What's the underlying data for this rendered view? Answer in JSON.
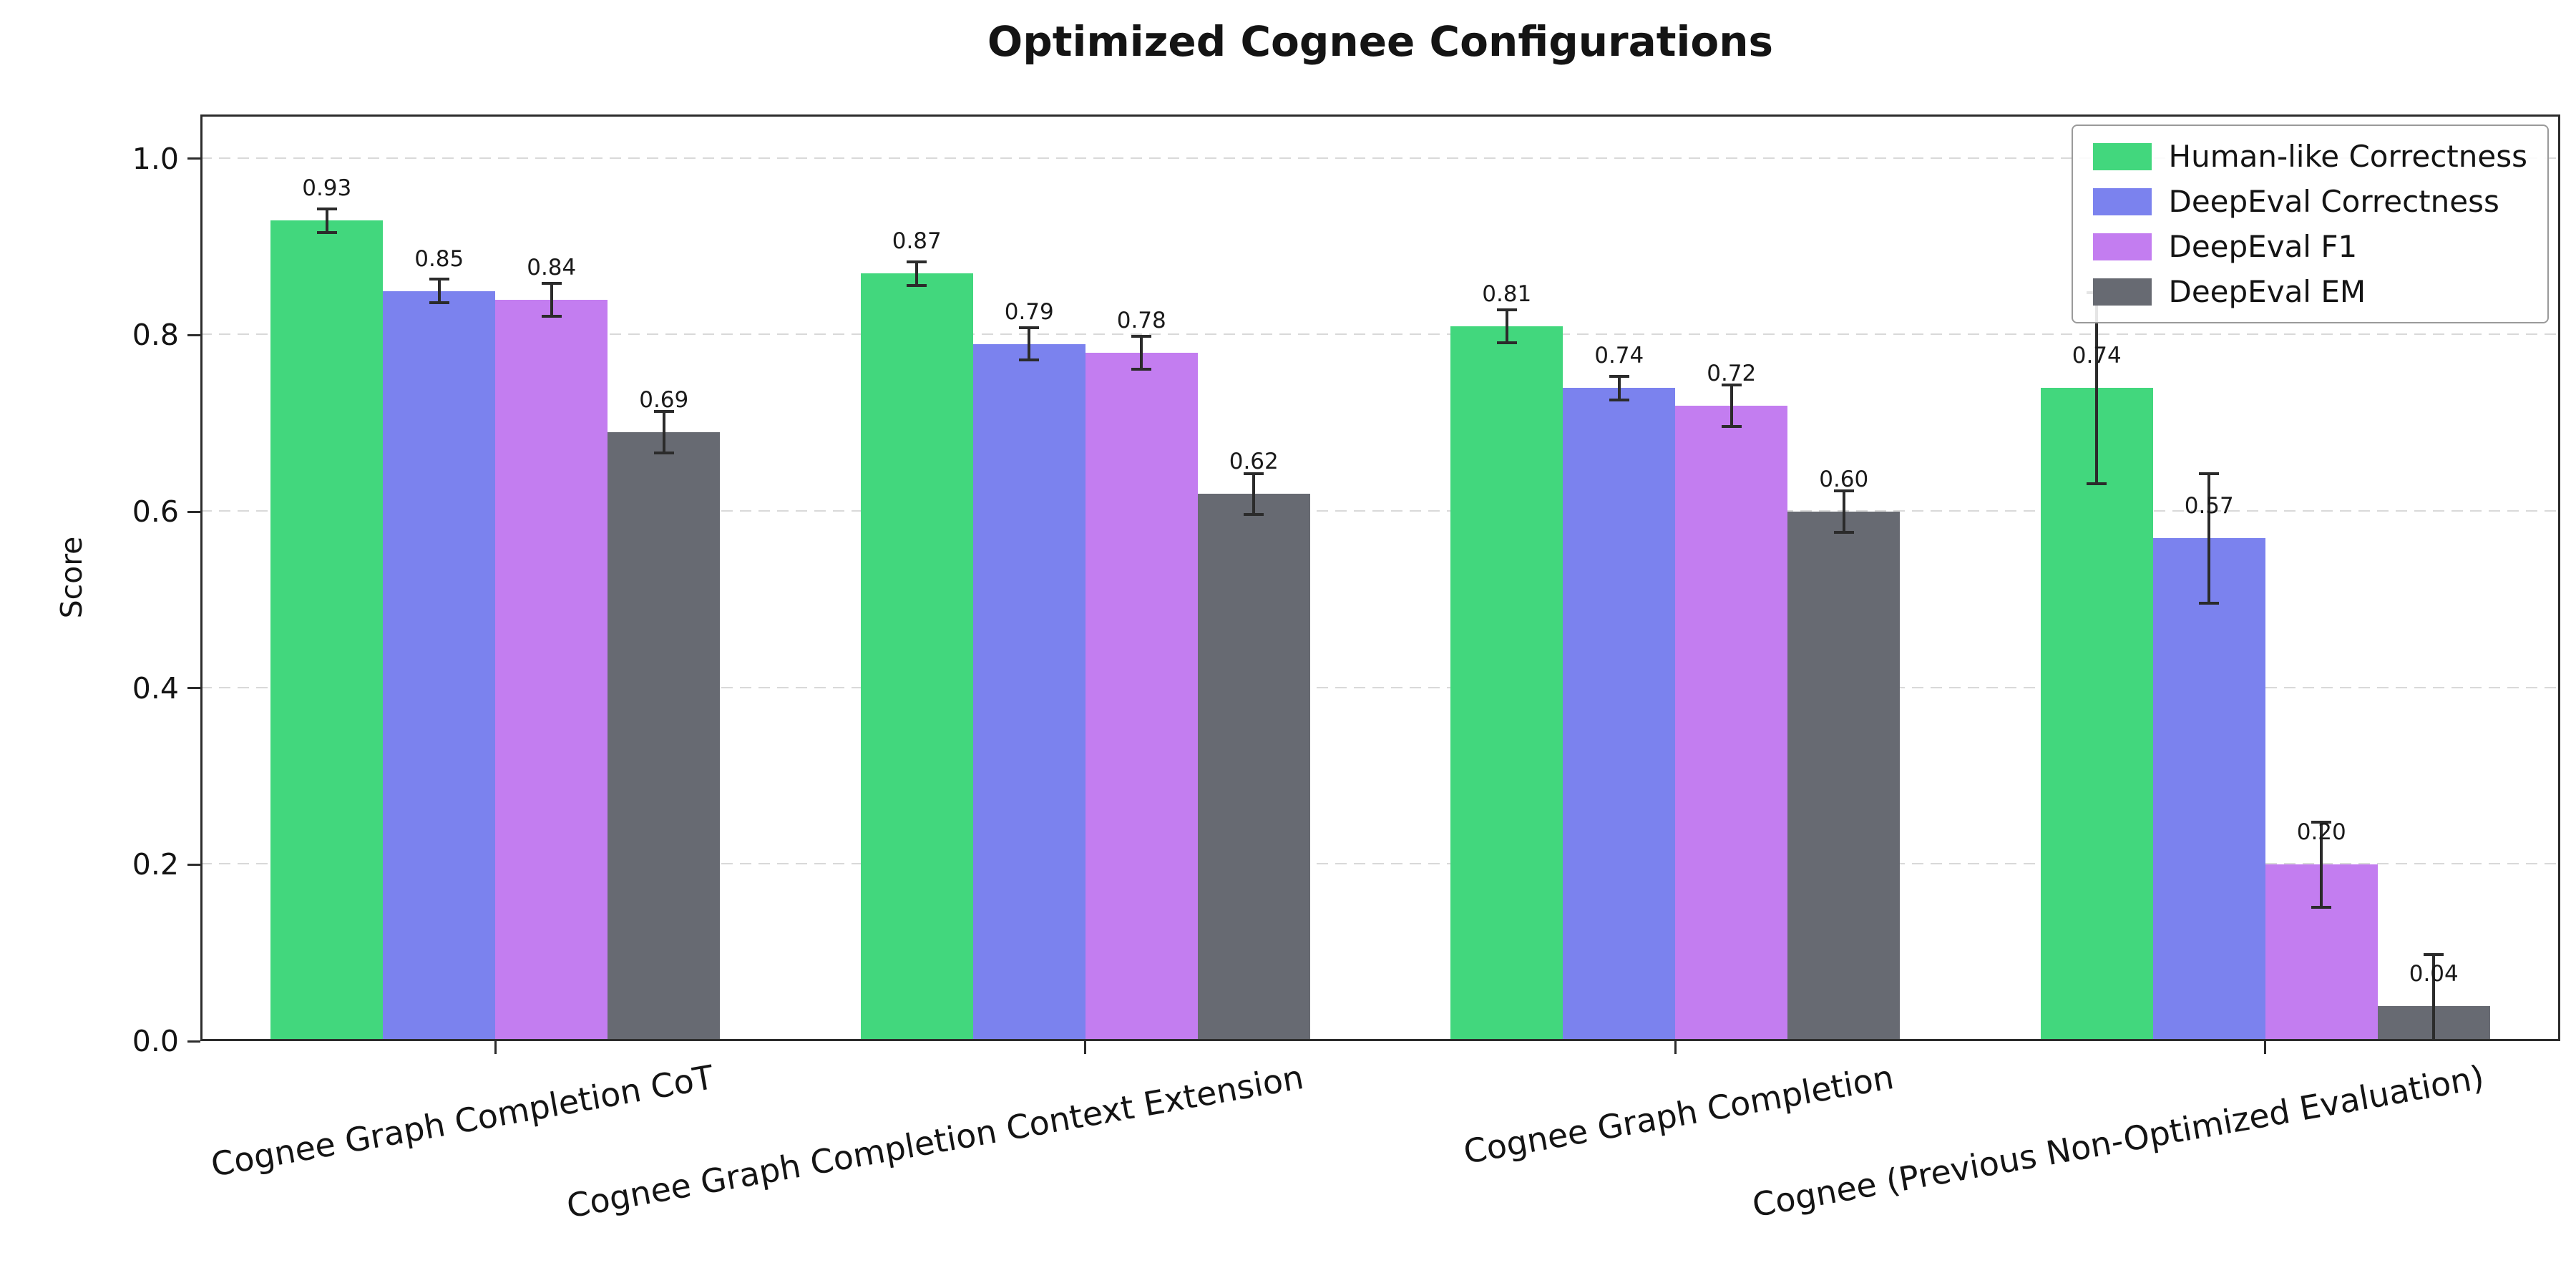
{
  "chart_data": {
    "type": "bar",
    "title": "Optimized Cognee Configurations",
    "ylabel": "Score",
    "xlabel": "",
    "ylim": [
      0,
      1.05
    ],
    "yticks": [
      0.0,
      0.2,
      0.4,
      0.6,
      0.8,
      1.0
    ],
    "grid": "horizontal dashed",
    "legend_position": "upper right",
    "error_bars": true,
    "colors": {
      "human_like_correctness": "#42d77d",
      "deepeval_correctness": "#7b82ee",
      "deepeval_f1": "#c37df0",
      "deepeval_em": "#676a72",
      "error_bar": "#2b2b2b"
    },
    "categories": [
      "Cognee Graph Completion CoT",
      "Cognee Graph Completion Context Extension",
      "Cognee Graph Completion",
      "Cognee (Previous Non-Optimized Evaluation)"
    ],
    "series": [
      {
        "name": "Human-like Correctness",
        "color": "#42d77d",
        "values": [
          0.93,
          0.87,
          0.81,
          0.74
        ],
        "errors": [
          0.015,
          0.015,
          0.02,
          0.11
        ]
      },
      {
        "name": "DeepEval Correctness",
        "color": "#7b82ee",
        "values": [
          0.85,
          0.79,
          0.74,
          0.57
        ],
        "errors": [
          0.015,
          0.02,
          0.015,
          0.075
        ]
      },
      {
        "name": "DeepEval F1",
        "color": "#c37df0",
        "values": [
          0.84,
          0.78,
          0.72,
          0.2
        ],
        "errors": [
          0.02,
          0.02,
          0.025,
          0.05
        ]
      },
      {
        "name": "DeepEval EM",
        "color": "#676a72",
        "values": [
          0.69,
          0.62,
          0.6,
          0.04
        ],
        "errors": [
          0.025,
          0.025,
          0.025,
          0.06
        ]
      }
    ]
  }
}
